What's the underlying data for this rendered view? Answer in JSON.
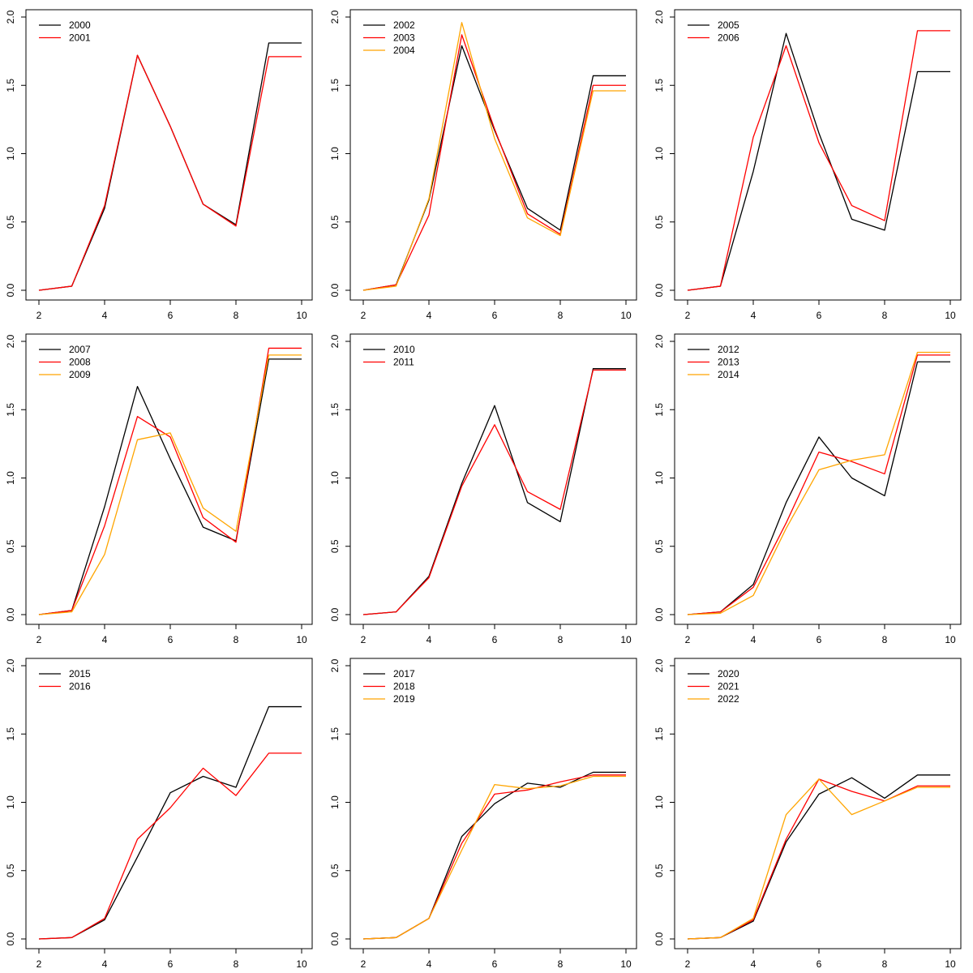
{
  "colors": {
    "black": "#000000",
    "red": "#ff0000",
    "orange": "#ffa500"
  },
  "chart_data": [
    {
      "type": "line",
      "x": [
        2,
        3,
        4,
        5,
        6,
        7,
        8,
        9,
        10
      ],
      "xlim": [
        2,
        10
      ],
      "ylim": [
        0,
        2
      ],
      "xticks": [
        "2",
        "4",
        "6",
        "8",
        "10"
      ],
      "yticks": [
        "0.0",
        "0.5",
        "1.0",
        "1.5",
        "2.0"
      ],
      "legend_position": "top-left",
      "series": [
        {
          "name": "2000",
          "color": "#000000",
          "values": [
            0.0,
            0.03,
            0.6,
            1.72,
            1.2,
            0.63,
            0.48,
            1.81,
            1.81
          ]
        },
        {
          "name": "2001",
          "color": "#ff0000",
          "values": [
            0.0,
            0.03,
            0.62,
            1.72,
            1.2,
            0.63,
            0.47,
            1.71,
            1.71
          ]
        }
      ]
    },
    {
      "type": "line",
      "x": [
        2,
        3,
        4,
        5,
        6,
        7,
        8,
        9,
        10
      ],
      "xlim": [
        2,
        10
      ],
      "ylim": [
        0,
        2
      ],
      "xticks": [
        "2",
        "4",
        "6",
        "8",
        "10"
      ],
      "yticks": [
        "0.0",
        "0.5",
        "1.0",
        "1.5",
        "2.0"
      ],
      "legend_position": "top-left",
      "series": [
        {
          "name": "2002",
          "color": "#000000",
          "values": [
            0.0,
            0.04,
            0.66,
            1.79,
            1.17,
            0.6,
            0.44,
            1.57,
            1.57
          ]
        },
        {
          "name": "2003",
          "color": "#ff0000",
          "values": [
            0.0,
            0.04,
            0.55,
            1.87,
            1.18,
            0.56,
            0.41,
            1.5,
            1.5
          ]
        },
        {
          "name": "2004",
          "color": "#ffa500",
          "values": [
            0.0,
            0.03,
            0.67,
            1.96,
            1.11,
            0.53,
            0.4,
            1.46,
            1.46
          ]
        }
      ]
    },
    {
      "type": "line",
      "x": [
        2,
        3,
        4,
        5,
        6,
        7,
        8,
        9,
        10
      ],
      "xlim": [
        2,
        10
      ],
      "ylim": [
        0,
        2
      ],
      "xticks": [
        "2",
        "4",
        "6",
        "8",
        "10"
      ],
      "yticks": [
        "0.0",
        "0.5",
        "1.0",
        "1.5",
        "2.0"
      ],
      "legend_position": "top-left",
      "series": [
        {
          "name": "2005",
          "color": "#000000",
          "values": [
            0.0,
            0.03,
            0.87,
            1.88,
            1.15,
            0.52,
            0.44,
            1.6,
            1.6
          ]
        },
        {
          "name": "2006",
          "color": "#ff0000",
          "values": [
            0.0,
            0.03,
            1.12,
            1.79,
            1.08,
            0.62,
            0.51,
            1.9,
            1.9
          ]
        }
      ]
    },
    {
      "type": "line",
      "x": [
        2,
        3,
        4,
        5,
        6,
        7,
        8,
        9,
        10
      ],
      "xlim": [
        2,
        10
      ],
      "ylim": [
        0,
        2
      ],
      "xticks": [
        "2",
        "4",
        "6",
        "8",
        "10"
      ],
      "yticks": [
        "0.0",
        "0.5",
        "1.0",
        "1.5",
        "2.0"
      ],
      "legend_position": "top-left",
      "series": [
        {
          "name": "2007",
          "color": "#000000",
          "values": [
            0.0,
            0.03,
            0.79,
            1.67,
            1.14,
            0.64,
            0.54,
            1.87,
            1.87
          ]
        },
        {
          "name": "2008",
          "color": "#ff0000",
          "values": [
            0.0,
            0.03,
            0.65,
            1.45,
            1.3,
            0.71,
            0.53,
            1.95,
            1.95
          ]
        },
        {
          "name": "2009",
          "color": "#ffa500",
          "values": [
            0.0,
            0.02,
            0.44,
            1.28,
            1.33,
            0.78,
            0.61,
            1.9,
            1.9
          ]
        }
      ]
    },
    {
      "type": "line",
      "x": [
        2,
        3,
        4,
        5,
        6,
        7,
        8,
        9,
        10
      ],
      "xlim": [
        2,
        10
      ],
      "ylim": [
        0,
        2
      ],
      "xticks": [
        "2",
        "4",
        "6",
        "8",
        "10"
      ],
      "yticks": [
        "0.0",
        "0.5",
        "1.0",
        "1.5",
        "2.0"
      ],
      "legend_position": "top-left",
      "series": [
        {
          "name": "2010",
          "color": "#000000",
          "values": [
            0.0,
            0.02,
            0.28,
            0.96,
            1.53,
            0.82,
            0.68,
            1.8,
            1.8
          ]
        },
        {
          "name": "2011",
          "color": "#ff0000",
          "values": [
            0.0,
            0.02,
            0.27,
            0.94,
            1.39,
            0.9,
            0.77,
            1.79,
            1.79
          ]
        }
      ]
    },
    {
      "type": "line",
      "x": [
        2,
        3,
        4,
        5,
        6,
        7,
        8,
        9,
        10
      ],
      "xlim": [
        2,
        10
      ],
      "ylim": [
        0,
        2
      ],
      "xticks": [
        "2",
        "4",
        "6",
        "8",
        "10"
      ],
      "yticks": [
        "0.0",
        "0.5",
        "1.0",
        "1.5",
        "2.0"
      ],
      "legend_position": "top-left",
      "series": [
        {
          "name": "2012",
          "color": "#000000",
          "values": [
            0.0,
            0.02,
            0.22,
            0.82,
            1.3,
            1.0,
            0.87,
            1.85,
            1.85
          ]
        },
        {
          "name": "2013",
          "color": "#ff0000",
          "values": [
            0.0,
            0.02,
            0.2,
            0.67,
            1.19,
            1.12,
            1.03,
            1.9,
            1.9
          ]
        },
        {
          "name": "2014",
          "color": "#ffa500",
          "values": [
            0.0,
            0.01,
            0.14,
            0.63,
            1.06,
            1.13,
            1.17,
            1.92,
            1.92
          ]
        }
      ]
    },
    {
      "type": "line",
      "x": [
        2,
        3,
        4,
        5,
        6,
        7,
        8,
        9,
        10
      ],
      "xlim": [
        2,
        10
      ],
      "ylim": [
        0,
        2
      ],
      "xticks": [
        "2",
        "4",
        "6",
        "8",
        "10"
      ],
      "yticks": [
        "0.0",
        "0.5",
        "1.0",
        "1.5",
        "2.0"
      ],
      "legend_position": "top-left",
      "series": [
        {
          "name": "2015",
          "color": "#000000",
          "values": [
            0.0,
            0.01,
            0.14,
            0.6,
            1.07,
            1.19,
            1.11,
            1.7,
            1.7
          ]
        },
        {
          "name": "2016",
          "color": "#ff0000",
          "values": [
            0.0,
            0.01,
            0.15,
            0.73,
            0.96,
            1.25,
            1.05,
            1.36,
            1.36
          ]
        }
      ]
    },
    {
      "type": "line",
      "x": [
        2,
        3,
        4,
        5,
        6,
        7,
        8,
        9,
        10
      ],
      "xlim": [
        2,
        10
      ],
      "ylim": [
        0,
        2
      ],
      "xticks": [
        "2",
        "4",
        "6",
        "8",
        "10"
      ],
      "yticks": [
        "0.0",
        "0.5",
        "1.0",
        "1.5",
        "2.0"
      ],
      "legend_position": "top-left",
      "series": [
        {
          "name": "2017",
          "color": "#000000",
          "values": [
            0.0,
            0.01,
            0.15,
            0.75,
            0.99,
            1.14,
            1.11,
            1.22,
            1.22
          ]
        },
        {
          "name": "2018",
          "color": "#ff0000",
          "values": [
            0.0,
            0.01,
            0.15,
            0.7,
            1.06,
            1.09,
            1.15,
            1.2,
            1.2
          ]
        },
        {
          "name": "2019",
          "color": "#ffa500",
          "values": [
            0.0,
            0.01,
            0.15,
            0.65,
            1.13,
            1.1,
            1.12,
            1.19,
            1.19
          ]
        }
      ]
    },
    {
      "type": "line",
      "x": [
        2,
        3,
        4,
        5,
        6,
        7,
        8,
        9,
        10
      ],
      "xlim": [
        2,
        10
      ],
      "ylim": [
        0,
        2
      ],
      "xticks": [
        "2",
        "4",
        "6",
        "8",
        "10"
      ],
      "yticks": [
        "0.0",
        "0.5",
        "1.0",
        "1.5",
        "2.0"
      ],
      "legend_position": "top-left",
      "series": [
        {
          "name": "2020",
          "color": "#000000",
          "values": [
            0.0,
            0.01,
            0.13,
            0.71,
            1.06,
            1.18,
            1.03,
            1.2,
            1.2
          ]
        },
        {
          "name": "2021",
          "color": "#ff0000",
          "values": [
            0.0,
            0.01,
            0.14,
            0.73,
            1.17,
            1.08,
            1.01,
            1.12,
            1.12
          ]
        },
        {
          "name": "2022",
          "color": "#ffa500",
          "values": [
            0.0,
            0.01,
            0.15,
            0.91,
            1.17,
            0.91,
            1.01,
            1.11,
            1.11
          ]
        }
      ]
    }
  ]
}
